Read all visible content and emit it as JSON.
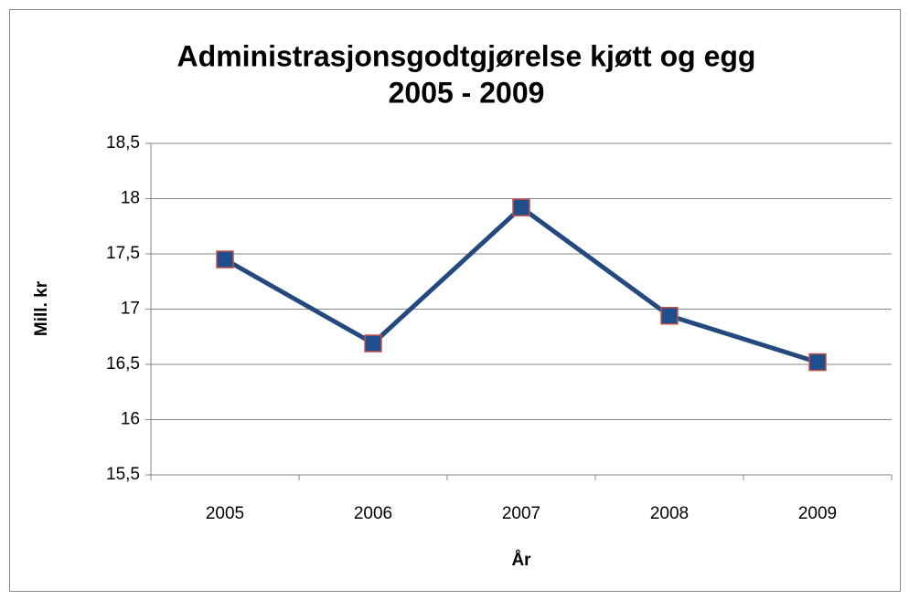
{
  "chart_data": {
    "type": "line",
    "title": [
      "Administrasjonsgodtgjørelse kjøtt og egg",
      "2005 - 2009"
    ],
    "x_label": "År",
    "y_label": "Mill. kr",
    "categories": [
      "2005",
      "2006",
      "2007",
      "2008",
      "2009"
    ],
    "series": [
      {
        "name": "Mill. kr",
        "color": "#23497e",
        "marker_color": "#1f4e8c",
        "marker_edge": "#c0504d",
        "values": [
          17.45,
          16.69,
          17.92,
          16.94,
          16.52
        ]
      }
    ],
    "ylim": [
      15.5,
      18.5
    ],
    "yticks": [
      {
        "value": 15.5,
        "label": "15,5"
      },
      16,
      {
        "value": 16.5,
        "label": "16,5"
      },
      17,
      {
        "value": 17.5,
        "label": "17,5"
      },
      18,
      {
        "value": 18.5,
        "label": "18,5"
      }
    ],
    "grid": true,
    "legend": false
  }
}
